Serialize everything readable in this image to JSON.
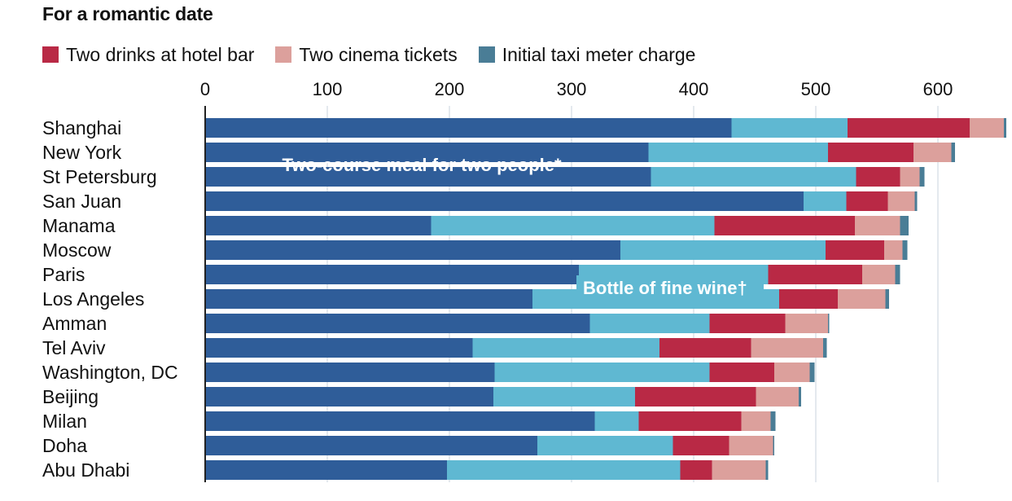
{
  "chart_data": {
    "type": "bar",
    "orientation": "horizontal",
    "stacked": true,
    "title": "For a romantic date",
    "xlabel": "",
    "ylabel": "",
    "xlim": [
      0,
      660
    ],
    "xticks": [
      "0",
      "100",
      "200",
      "300",
      "400",
      "500",
      "600"
    ],
    "categories": [
      "Shanghai",
      "New York",
      "St Petersburg",
      "San Juan",
      "Manama",
      "Moscow",
      "Paris",
      "Los Angeles",
      "Amman",
      "Tel Aviv",
      "Washington, DC",
      "Beijing",
      "Milan",
      "Doha",
      "Abu Dhabi"
    ],
    "series": [
      {
        "name": "Two-course meal for two people*",
        "color": "#2f5d99",
        "values": [
          431,
          363,
          365,
          490,
          185,
          340,
          306,
          268,
          315,
          219,
          237,
          236,
          319,
          272,
          198
        ]
      },
      {
        "name": "Bottle of fine wine†",
        "color": "#5fb8d2",
        "values": [
          95,
          147,
          168,
          35,
          232,
          168,
          155,
          202,
          98,
          153,
          176,
          116,
          36,
          111,
          191
        ]
      },
      {
        "name": "Two drinks at hotel bar",
        "color": "#b92945",
        "values": [
          100,
          70,
          36,
          34,
          115,
          48,
          77,
          48,
          62,
          75,
          53,
          99,
          84,
          46,
          26
        ]
      },
      {
        "name": "Two cinema tickets",
        "color": "#dca09c",
        "values": [
          28,
          31,
          16,
          22,
          37,
          15,
          27,
          39,
          35,
          59,
          29,
          35,
          24,
          36,
          44
        ]
      },
      {
        "name": "Initial taxi meter charge",
        "color": "#4a7d96",
        "values": [
          2,
          3,
          4,
          2,
          7,
          4,
          4,
          3,
          1,
          3,
          4,
          2,
          4,
          1,
          2
        ]
      }
    ],
    "annotations": [
      "Two-course meal for two people*",
      "Bottle of fine wine†"
    ],
    "grid": true,
    "legend_position": "top-left"
  },
  "legend": [
    {
      "label": "Two drinks at hotel bar",
      "color": "#b92945"
    },
    {
      "label": "Two cinema tickets",
      "color": "#dca09c"
    },
    {
      "label": "Initial taxi meter charge",
      "color": "#4a7d96"
    }
  ],
  "colors": {
    "gridline": "#c9d3dc",
    "axis": "#222222",
    "annotation_text": "#ffffff"
  }
}
